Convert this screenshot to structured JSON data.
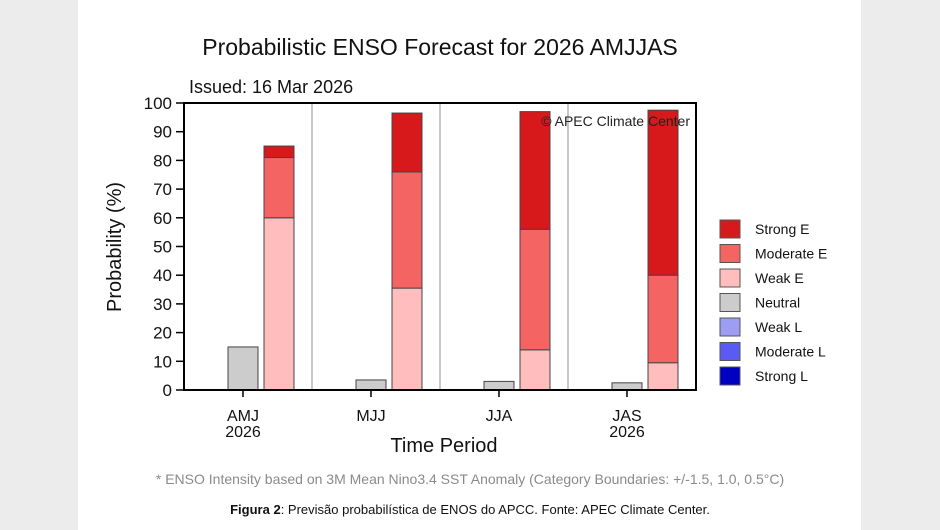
{
  "chart_data": {
    "type": "bar",
    "stacked": true,
    "title": "Probabilistic ENSO Forecast for 2026 AMJJAS",
    "subtitle": "Issued: 16 Mar 2026",
    "watermark": "© APEC Climate Center",
    "xlabel": "Time Period",
    "ylabel": "Probability (%)",
    "ylim": [
      0,
      100
    ],
    "yticks": [
      0,
      10,
      20,
      30,
      40,
      50,
      60,
      70,
      80,
      90,
      100
    ],
    "grid": false,
    "legend_position": "right",
    "categories": [
      {
        "label": "AMJ",
        "sublabel": "2026"
      },
      {
        "label": "MJJ",
        "sublabel": ""
      },
      {
        "label": "JJA",
        "sublabel": ""
      },
      {
        "label": "JAS",
        "sublabel": "2026"
      }
    ],
    "legend": [
      {
        "name": "Strong E",
        "color": "#d7191c"
      },
      {
        "name": "Moderate E",
        "color": "#f46462"
      },
      {
        "name": "Weak E",
        "color": "#ffbdbe"
      },
      {
        "name": "Neutral",
        "color": "#cccccc"
      },
      {
        "name": "Weak L",
        "color": "#9d9df4"
      },
      {
        "name": "Moderate L",
        "color": "#5a5af4"
      },
      {
        "name": "Strong L",
        "color": "#0000c4"
      }
    ],
    "series": [
      {
        "name": "Neutral",
        "values": [
          15,
          3.5,
          3,
          2.5
        ]
      },
      {
        "name": "Weak E",
        "values": [
          60,
          35.5,
          14,
          9.5
        ]
      },
      {
        "name": "Moderate E",
        "values": [
          21,
          40.5,
          42,
          30.5
        ]
      },
      {
        "name": "Strong E",
        "values": [
          4,
          20.5,
          41,
          57.5
        ]
      },
      {
        "name": "Weak L",
        "values": [
          0,
          0,
          0,
          0
        ]
      },
      {
        "name": "Moderate L",
        "values": [
          0,
          0,
          0,
          0
        ]
      },
      {
        "name": "Strong L",
        "values": [
          0,
          0,
          0,
          0
        ]
      }
    ]
  },
  "footnote": "* ENSO Intensity based on 3M Mean Nino3.4 SST Anomaly (Category Boundaries: +/-1.5, 1.0, 0.5°C)",
  "caption": {
    "label": "Figura 2",
    "text": ": Previsão probabilística de ENOS do APCC. Fonte: APEC Climate Center."
  }
}
